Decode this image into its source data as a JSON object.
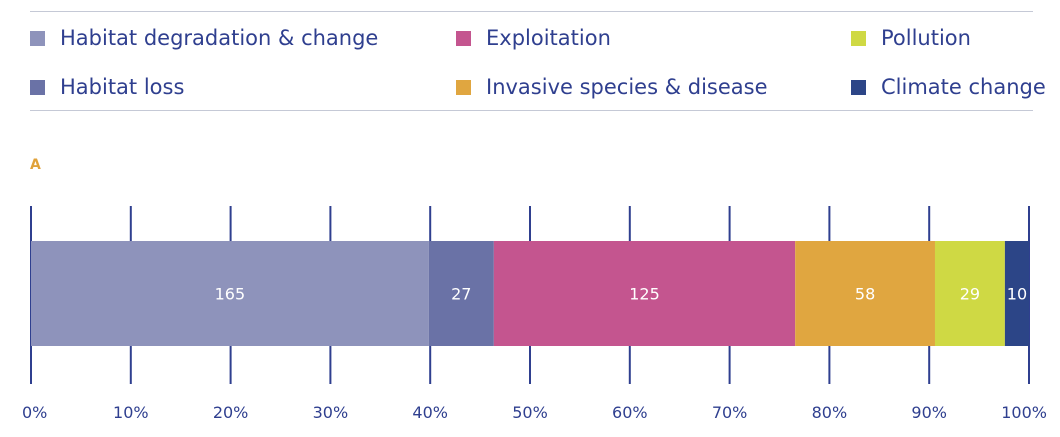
{
  "legend": [
    {
      "label": "Habitat degradation & change",
      "color": "#8e93bb"
    },
    {
      "label": "Exploitation",
      "color": "#c4558f"
    },
    {
      "label": "Pollution",
      "color": "#cfd944"
    },
    {
      "label": "Habitat loss",
      "color": "#6a72a6"
    },
    {
      "label": "Invasive species & disease",
      "color": "#e0a640"
    },
    {
      "label": "Climate change",
      "color": "#2c4587"
    }
  ],
  "panel_label": "A",
  "chart_data": {
    "type": "bar",
    "orientation": "horizontal-stacked-100",
    "series": [
      {
        "name": "Habitat degradation & change",
        "value": 165,
        "color": "#8e93bb"
      },
      {
        "name": "Habitat loss",
        "value": 27,
        "color": "#6a72a6"
      },
      {
        "name": "Exploitation",
        "value": 125,
        "color": "#c4558f"
      },
      {
        "name": "Invasive species & disease",
        "value": 58,
        "color": "#e0a640"
      },
      {
        "name": "Pollution",
        "value": 29,
        "color": "#cfd944"
      },
      {
        "name": "Climate change",
        "value": 10,
        "color": "#2c4587"
      }
    ],
    "xticks": [
      "0%",
      "10%",
      "20%",
      "30%",
      "40%",
      "50%",
      "60%",
      "70%",
      "80%",
      "90%",
      "100%"
    ],
    "xlim": [
      0,
      100
    ],
    "grid": true
  }
}
